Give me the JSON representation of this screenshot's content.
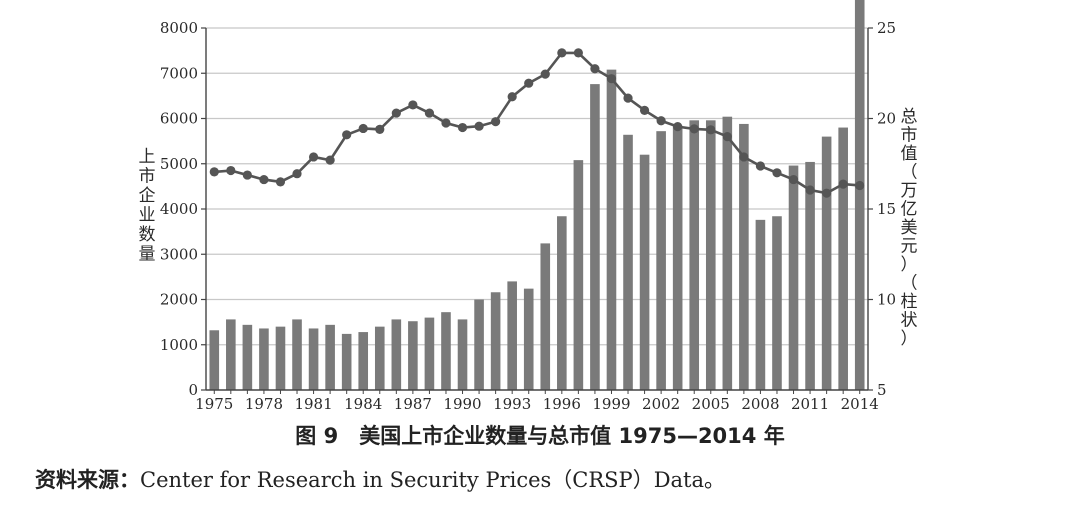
{
  "chart_data": {
    "type": "bar",
    "title": "图 9　美国上市企业数量与总市值 1975—2014 年",
    "ylabel_left": "上市企业数量",
    "ylabel_right": "总市值（万亿美元）（柱状）",
    "x": [
      1975,
      1976,
      1977,
      1978,
      1979,
      1980,
      1981,
      1982,
      1983,
      1984,
      1985,
      1986,
      1987,
      1988,
      1989,
      1990,
      1991,
      1992,
      1993,
      1994,
      1995,
      1996,
      1997,
      1998,
      1999,
      2000,
      2001,
      2002,
      2003,
      2004,
      2005,
      2006,
      2007,
      2008,
      2009,
      2010,
      2011,
      2012,
      2013,
      2014
    ],
    "x_tick_labels": [
      "1975",
      "1978",
      "1981",
      "1984",
      "1987",
      "1990",
      "1993",
      "1996",
      "1999",
      "2002",
      "2005",
      "2008",
      "2011",
      "2014"
    ],
    "ylim_left": [
      0,
      8000
    ],
    "yticks_left": [
      0,
      1000,
      2000,
      3000,
      4000,
      5000,
      6000,
      7000,
      8000
    ],
    "ylim_right": [
      5,
      25
    ],
    "yticks_right": [
      5,
      10,
      15,
      20,
      25
    ],
    "grid": true,
    "series": [
      {
        "name": "总市值（万亿美元）（柱状）",
        "type": "bar",
        "axis": "right",
        "color": "#7a7a7a",
        "values": [
          8.3,
          8.9,
          8.6,
          8.4,
          8.5,
          8.9,
          8.4,
          8.6,
          8.1,
          8.2,
          8.5,
          8.9,
          8.8,
          9.0,
          9.3,
          8.9,
          10.0,
          10.4,
          11.0,
          10.6,
          13.1,
          14.6,
          17.7,
          21.9,
          22.7,
          19.1,
          18.0,
          19.3,
          19.6,
          19.9,
          19.9,
          20.1,
          19.7,
          14.4,
          14.6,
          17.4,
          17.6,
          19.0,
          19.5,
          26.6
        ]
      },
      {
        "name": "上市企业数量",
        "type": "line",
        "axis": "left",
        "color": "#555555",
        "values": [
          4820,
          4850,
          4750,
          4650,
          4600,
          4780,
          5150,
          5080,
          5640,
          5780,
          5760,
          6120,
          6300,
          6120,
          5900,
          5800,
          5830,
          5930,
          6480,
          6780,
          6980,
          7450,
          7450,
          7100,
          6880,
          6450,
          6180,
          5950,
          5820,
          5770,
          5750,
          5600,
          5150,
          4950,
          4800,
          4650,
          4420,
          4350,
          4550,
          4520
        ]
      }
    ]
  },
  "caption": "图 9　美国上市企业数量与总市值 1975—2014 年",
  "source": {
    "label": "资料来源：",
    "text": "Center for Research in Security Prices（CRSP）Data。"
  }
}
